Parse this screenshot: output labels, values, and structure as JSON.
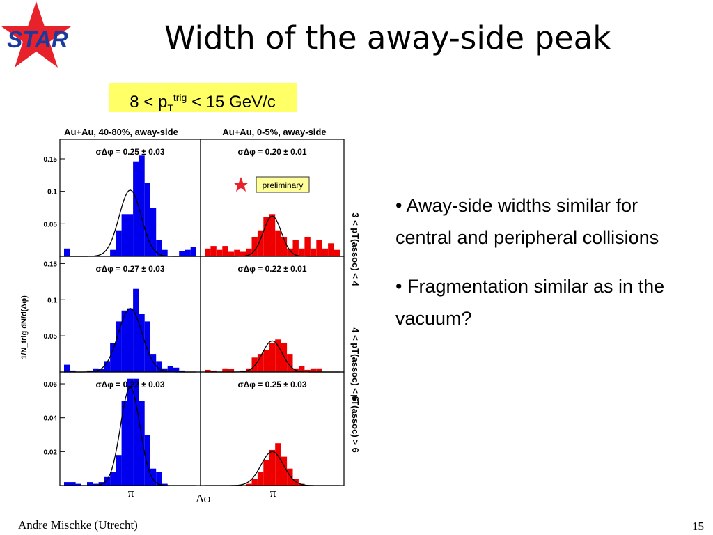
{
  "slide": {
    "title": "Width of the away-side peak",
    "logo_text": "STAR",
    "footer": "Andre Mischke (Utrecht)",
    "page_number": "15",
    "bullets": [
      "• Away-side widths similar for central and peripheral collisions",
      "• Fragmentation similar as in the vacuum?"
    ]
  },
  "pt_range": {
    "prefix": "8 < p",
    "sub": "T",
    "sup": "trig",
    "suffix": " < 15 GeV/c"
  },
  "colors": {
    "peripheral": "#0000ee",
    "central": "#ee0000",
    "highlight": "#ffff66",
    "logo_star": "#e8222a",
    "logo_text": "#1a3a9e"
  },
  "chart_data": {
    "type": "bar",
    "column_titles": [
      "Au+Au, 40-80%, away-side",
      "Au+Au, 0-5%, away-side"
    ],
    "row_labels": [
      "3 < pT(assoc) < 4",
      "4 < pT(assoc) < 6",
      "pT(assoc) > 6"
    ],
    "ylabel": "1/N_trig dN/d(Δφ)",
    "xlabel": "Δφ",
    "x_tick_label": "π",
    "preliminary_label": "preliminary",
    "panels": [
      {
        "row": 0,
        "col": 0,
        "sigma": "σΔφ = 0.25 ± 0.03",
        "ylim": [
          0,
          0.18
        ],
        "yticks": [
          "0.05",
          "0.1",
          "0.15"
        ],
        "ytick_values": [
          0.05,
          0.1,
          0.15
        ],
        "sigma_fit": 0.25,
        "fit_peak": 0.102,
        "values": [
          0.012,
          0,
          0,
          0,
          0,
          0,
          0,
          0,
          0.01,
          0.04,
          0.065,
          0.065,
          0.146,
          0.155,
          0.113,
          0.075,
          0.025,
          0.01,
          0,
          0,
          0.008,
          0.01,
          0.015
        ]
      },
      {
        "row": 0,
        "col": 1,
        "sigma": "σΔφ = 0.20 ± 0.01",
        "ylim": [
          0,
          0.18
        ],
        "yticks": [],
        "ytick_values": [],
        "sigma_fit": 0.2,
        "fit_peak": 0.062,
        "values": [
          0.012,
          0.016,
          0.01,
          0.016,
          0.007,
          0.01,
          0.007,
          0.012,
          0.03,
          0.04,
          0.06,
          0.065,
          0.04,
          0.03,
          0.012,
          0.025,
          0.012,
          0.03,
          0.012,
          0.025,
          0.012,
          0.02,
          0.01
        ]
      },
      {
        "row": 1,
        "col": 0,
        "sigma": "σΔφ = 0.27 ± 0.03",
        "ylim": [
          0,
          0.16
        ],
        "yticks": [
          "0.05",
          "0.1",
          "0.15"
        ],
        "ytick_values": [
          0.05,
          0.1,
          0.15
        ],
        "sigma_fit": 0.27,
        "fit_peak": 0.088,
        "values": [
          0.01,
          0.002,
          0,
          0,
          0.002,
          0.005,
          0.004,
          0.015,
          0.04,
          0.07,
          0.085,
          0.088,
          0.115,
          0.08,
          0.07,
          0.025,
          0.015,
          0.005,
          0.008,
          0.006,
          0.002,
          0,
          0
        ]
      },
      {
        "row": 1,
        "col": 1,
        "sigma": "σΔφ = 0.22 ± 0.01",
        "ylim": [
          0,
          0.16
        ],
        "yticks": [],
        "ytick_values": [],
        "sigma_fit": 0.22,
        "fit_peak": 0.043,
        "values": [
          0.003,
          0.002,
          0,
          0.005,
          0.004,
          0,
          0.002,
          0.005,
          0.02,
          0.025,
          0.03,
          0.04,
          0.045,
          0.04,
          0.025,
          0.005,
          0.008,
          0.003,
          0.005,
          0.005,
          0,
          0,
          0
        ]
      },
      {
        "row": 2,
        "col": 0,
        "sigma": "σΔφ = 0.22 ± 0.03",
        "ylim": [
          0,
          0.067
        ],
        "yticks": [
          "0.02",
          "0.04",
          "0.06"
        ],
        "ytick_values": [
          0.02,
          0.04,
          0.06
        ],
        "sigma_fit": 0.22,
        "fit_peak": 0.058,
        "values": [
          0.002,
          0.002,
          0.001,
          0,
          0.002,
          0.001,
          0.002,
          0.005,
          0.008,
          0.018,
          0.05,
          0.063,
          0.063,
          0.05,
          0.03,
          0.01,
          0.008,
          0.001,
          0,
          0,
          0,
          0,
          0
        ]
      },
      {
        "row": 2,
        "col": 1,
        "sigma": "σΔφ = 0.25 ± 0.03",
        "ylim": [
          0,
          0.067
        ],
        "yticks": [],
        "ytick_values": [],
        "sigma_fit": 0.25,
        "fit_peak": 0.02,
        "values": [
          0,
          0,
          0,
          0,
          0,
          0,
          0,
          0.001,
          0.004,
          0.008,
          0.015,
          0.021,
          0.025,
          0.017,
          0.01,
          0.004,
          0.001,
          0,
          0,
          0,
          0,
          0,
          0
        ]
      }
    ]
  }
}
